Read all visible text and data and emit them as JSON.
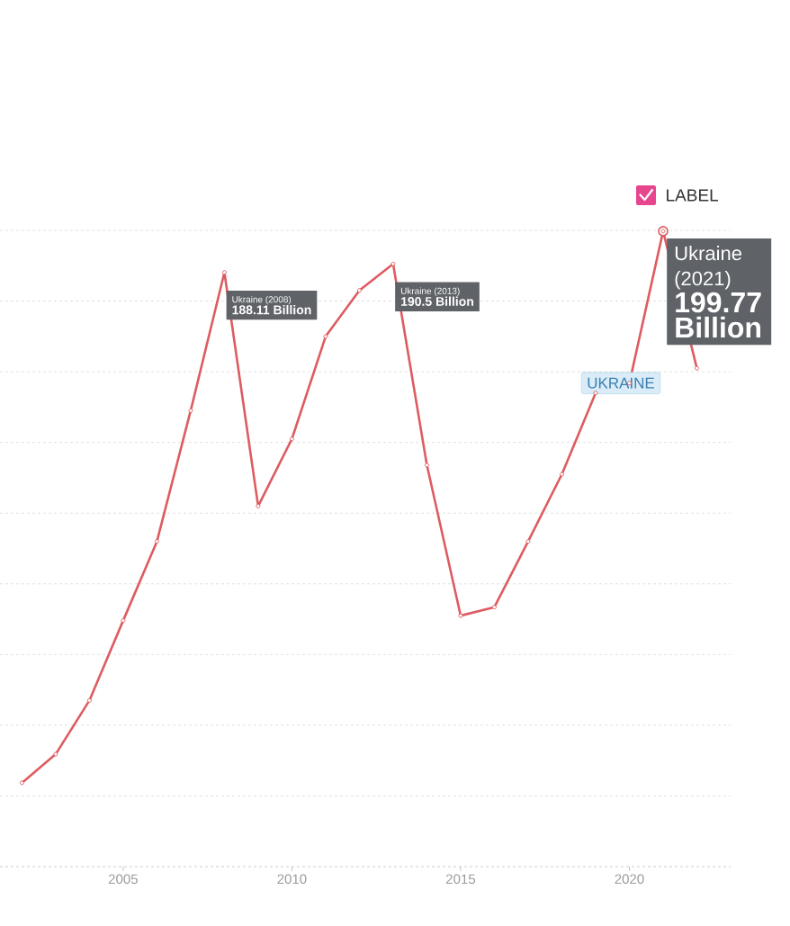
{
  "chart_data": {
    "type": "line",
    "x": [
      2002,
      2003,
      2004,
      2005,
      2006,
      2007,
      2008,
      2009,
      2010,
      2011,
      2012,
      2013,
      2014,
      2015,
      2016,
      2017,
      2018,
      2019,
      2020,
      2021,
      2022
    ],
    "series": [
      {
        "name": "UKRAINE",
        "color": "#dd5c61",
        "values": [
          43.7,
          51.8,
          67,
          89.6,
          112,
          149,
          188.11,
          122,
          141,
          170,
          183,
          190.5,
          133.6,
          91,
          93.4,
          112,
          131,
          154,
          156.8,
          199.77,
          161
        ],
        "value_labels": [
          null,
          null,
          null,
          null,
          null,
          null,
          "188.11 Billion",
          null,
          null,
          null,
          null,
          "190.5 Billion",
          null,
          null,
          null,
          null,
          null,
          null,
          null,
          "199.77 Billion",
          null
        ]
      }
    ],
    "annotations": [
      "LABEL",
      {
        "text": "Ukraine (2008)",
        "x": 2008,
        "y": 188.11
      },
      {
        "text": "Ukraine (2013)",
        "x": 2013,
        "y": 190.5
      },
      {
        "text": "Ukraine (2021)",
        "x": 2021,
        "y": 199.77
      }
    ],
    "xlim": [
      2001.35,
      2023
    ],
    "xticks": [
      2005,
      2010,
      2015,
      2020
    ],
    "ylim": [
      20,
      200
    ],
    "yticks": [
      {
        "value": 20,
        "label": null
      },
      {
        "value": 40,
        "label": null
      },
      {
        "value": 60,
        "label": null
      },
      {
        "value": 80,
        "label": null
      },
      {
        "value": 100,
        "label": null
      },
      {
        "value": 120,
        "label": null
      },
      {
        "value": 140,
        "label": null
      },
      {
        "value": 160,
        "label": null
      },
      {
        "value": 180,
        "label": null
      },
      {
        "value": 200,
        "label": null
      }
    ],
    "grid": "y",
    "marker": "circle",
    "line_style": "solid"
  }
}
